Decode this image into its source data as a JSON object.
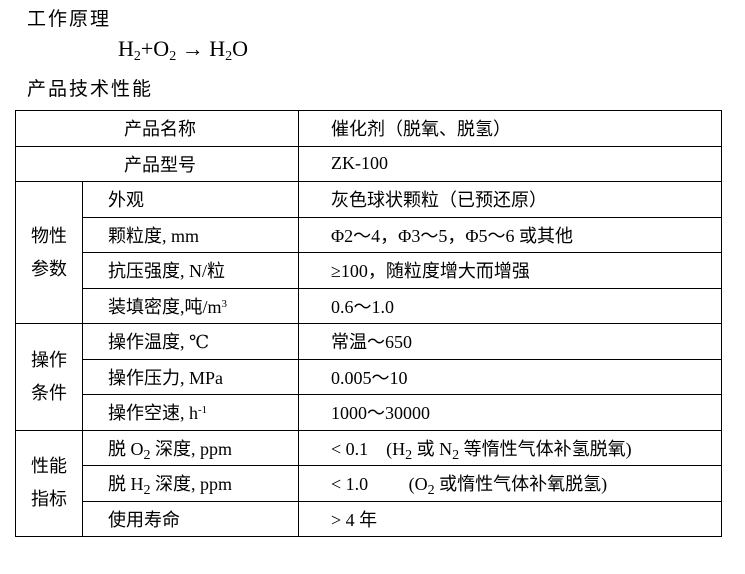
{
  "heading_principle": "工作原理",
  "equation": {
    "a": "H",
    "a_sub": "2",
    "plus": "+O",
    "b_sub": "2",
    "arrow": " → H",
    "c_sub": "2",
    "tail": "O"
  },
  "heading_performance": "产品技术性能",
  "table": {
    "name_label": "产品名称",
    "name_value": "催化剂（脱氧、脱氢）",
    "model_label": "产品型号",
    "model_value": "ZK-100",
    "groups": {
      "physical": {
        "l1": "物性",
        "l2": "参数"
      },
      "operating": {
        "l1": "操作",
        "l2": "条件"
      },
      "performance": {
        "l1": "性能",
        "l2": "指标"
      }
    },
    "rows": [
      {
        "param": "外观",
        "value": "灰色球状颗粒（已预还原）"
      },
      {
        "param": "颗粒度, mm",
        "value": "Φ2～4，Φ3～5，Φ5～6  或其他"
      },
      {
        "param": "抗压强度, N/粒",
        "value": "≥100，随粒度增大而增强"
      },
      {
        "param": "装填密度,吨/m",
        "param_sup": "3",
        "value": "0.6～1.0"
      },
      {
        "param": "操作温度, ℃",
        "value": "常温～650"
      },
      {
        "param": "操作压力, MPa",
        "value": "0.005～10"
      },
      {
        "param": "操作空速, h",
        "param_sup": "-1",
        "value": "1000～30000"
      },
      {
        "param_pre": "脱 O",
        "param_sub": "2",
        "param_post": " 深度, ppm",
        "value_pre": "< 0.1    (H",
        "value_sub1": "2",
        "value_mid": " 或 N",
        "value_sub2": "2",
        "value_post": " 等惰性气体补氢脱氧)"
      },
      {
        "param_pre": "脱 H",
        "param_sub": "2",
        "param_post": " 深度, ppm",
        "value_pre": "< 1.0         (O",
        "value_sub1": "2",
        "value_post": " 或惰性气体补氧脱氢)"
      },
      {
        "param": "使用寿命",
        "value": "> 4 年"
      }
    ]
  }
}
